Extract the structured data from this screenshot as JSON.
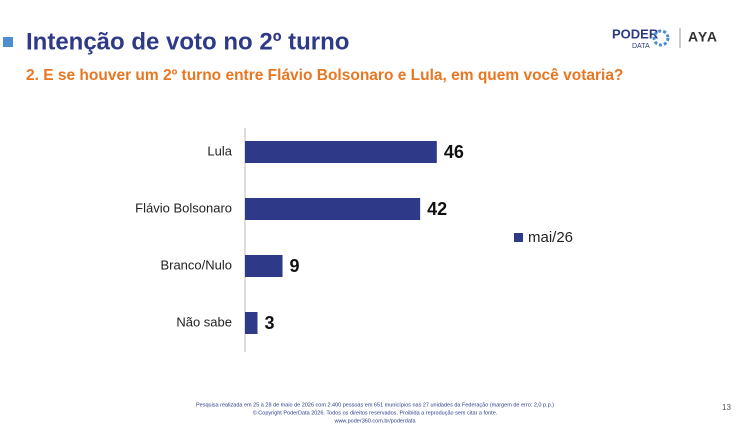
{
  "header": {
    "logo_main": "PODER",
    "logo_sub": "DATA",
    "logo_partner": "AYA"
  },
  "chart_data": {
    "type": "hbar",
    "title": "Intenção de voto no 2º turno",
    "subtitle": "2. E se houver um 2º turno entre Flávio Bolsonaro e Lula, em quem você votaria?",
    "categories": [
      "Lula",
      "Flávio Bolsonaro",
      "Branco/Nulo",
      "Não sabe"
    ],
    "series": [
      {
        "name": "mai/26",
        "color": "#2e3a87",
        "values": [
          46,
          42,
          9,
          3
        ]
      }
    ],
    "legend": "right"
  },
  "footer": {
    "lines": [
      "Pesquisa realizada em 25 a 28 de maio de 2026 com 2.400 pessoas em 651 municípios nas 27 unidades da Federação (margem de erro: 2,0 p.p.)",
      "© Copyright PoderData 2026. Todos os direitos reservados. Proibida a reprodução sem citar a fonte.",
      "www.poder360.com.br/poderdata"
    ],
    "page_number": "13"
  }
}
